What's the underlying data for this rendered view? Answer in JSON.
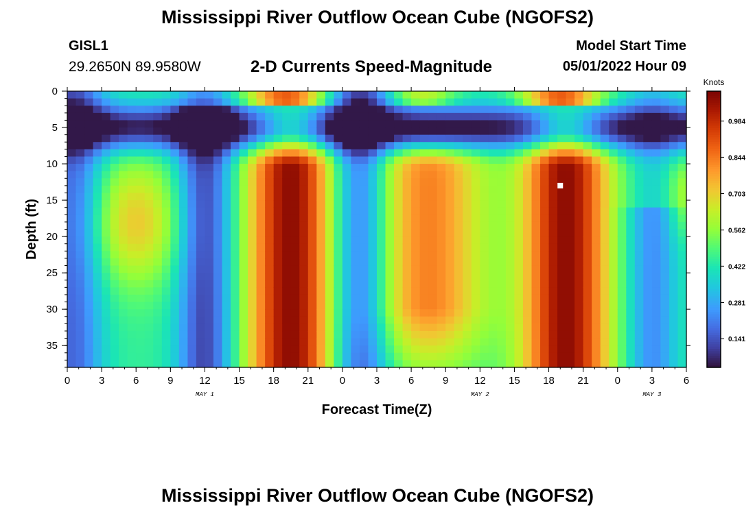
{
  "header": {
    "title": "Mississippi River Outflow Ocean Cube (NGOFS2)",
    "station": "GISL1",
    "coords": "29.2650N  89.9580W",
    "subtitle": "2-D Currents Speed-Magnitude",
    "model_start_label": "Model Start Time",
    "model_start_value": "05/01/2022 Hour 09"
  },
  "footer": {
    "title": "Mississippi River Outflow Ocean Cube (NGOFS2)"
  },
  "chart_data": {
    "type": "heatmap",
    "xlabel": "Forecast Time(Z)",
    "ylabel": "Depth (ft)",
    "x_tick_labels": [
      "0",
      "3",
      "6",
      "9",
      "12",
      "15",
      "18",
      "21",
      "0",
      "3",
      "6",
      "9",
      "12",
      "15",
      "18",
      "21",
      "0",
      "3",
      "6"
    ],
    "x_range_hours": [
      0,
      54
    ],
    "date_labels": [
      {
        "hour": 12,
        "text": "MAY 1"
      },
      {
        "hour": 36,
        "text": "MAY 2"
      },
      {
        "hour": 51,
        "text": "MAY 3"
      }
    ],
    "y_ticks": [
      0,
      5,
      10,
      15,
      20,
      25,
      30,
      35
    ],
    "ylim": [
      0,
      38
    ],
    "y_inverted": true,
    "colorbar": {
      "label": "Knots",
      "ticks": [
        0.141,
        0.281,
        0.422,
        0.562,
        0.703,
        0.844,
        0.984
      ],
      "range": [
        0.03,
        1.1
      ],
      "colormap": "turbo"
    },
    "marker": {
      "hour": 43,
      "depth": 13,
      "color": "#ffffff"
    },
    "features": [
      {
        "kind": "max",
        "hour_center": 19.5,
        "depth_range": [
          11,
          37
        ],
        "value": 1.05
      },
      {
        "kind": "max",
        "hour_center": 43.5,
        "depth_range": [
          11,
          37
        ],
        "value": 1.05
      },
      {
        "kind": "max",
        "hour_center": 31.5,
        "depth_range": [
          12,
          30
        ],
        "value": 0.82
      },
      {
        "kind": "max",
        "hour_center": 6,
        "depth_range": [
          14,
          22
        ],
        "value": 0.67
      },
      {
        "kind": "max",
        "hour_center": 19,
        "depth_range": [
          0,
          2
        ],
        "value": 0.9
      },
      {
        "kind": "max",
        "hour_center": 43,
        "depth_range": [
          0,
          2
        ],
        "value": 0.85
      },
      {
        "kind": "min",
        "hour_center": 11.5,
        "depth_range": [
          3,
          8
        ],
        "value": 0.06
      },
      {
        "kind": "min",
        "hour_center": 0,
        "depth_range": [
          3,
          8
        ],
        "value": 0.08
      },
      {
        "kind": "min",
        "hour_center": 51,
        "depth_range": [
          25,
          38
        ],
        "value": 0.12
      }
    ]
  }
}
